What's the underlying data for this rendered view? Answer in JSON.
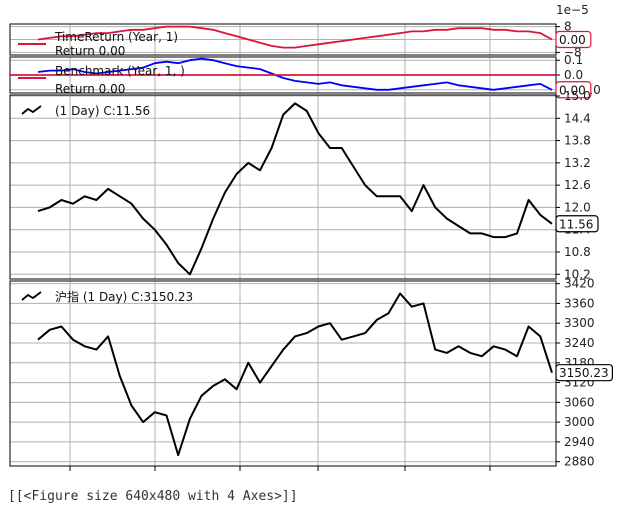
{
  "figure_caption": "[[<Figure size 640x480 with 4 Axes>]]",
  "colors": {
    "red": "#dc143c",
    "blue": "#0000ff",
    "black": "#000000",
    "grid": "#b0b0b0"
  },
  "chart_data": [
    {
      "type": "line",
      "legend": [
        "TimeReturn (Year, 1)",
        "Return 0.00"
      ],
      "exponent_label": "1e−5",
      "ylim": [
        -9,
        9
      ],
      "y_ticks": [
        8,
        0,
        -8
      ],
      "tick_labels": [
        "8",
        "0",
        "−8"
      ],
      "value_label": "0.00",
      "grid": true,
      "series": [
        {
          "values": [
            0,
            1,
            2,
            2,
            3,
            4,
            4,
            5,
            6,
            6,
            7,
            8,
            8,
            8,
            7,
            6,
            4,
            2,
            0,
            -2,
            -4,
            -5,
            -5,
            -4,
            -3,
            -2,
            -1,
            0,
            1,
            2,
            3,
            4,
            5,
            5,
            6,
            6,
            7,
            7,
            7,
            6,
            6,
            5,
            5,
            4,
            0
          ]
        }
      ]
    },
    {
      "type": "line",
      "legend": [
        "Benchmark (Year, 1, )",
        "Return 0.00"
      ],
      "ylim": [
        -0.115,
        0.115
      ],
      "y_ticks": [
        0.1,
        0.0,
        -0.1
      ],
      "tick_labels": [
        "0.1",
        "0.0",
        "−0.10"
      ],
      "value_label": "0.00",
      "grid": true,
      "series": [
        {
          "values": [
            0.02,
            0.03,
            0.03,
            0.04,
            0.02,
            0.01,
            0.02,
            0.03,
            0.04,
            0.05,
            0.08,
            0.09,
            0.08,
            0.1,
            0.11,
            0.1,
            0.08,
            0.06,
            0.05,
            0.04,
            0.01,
            -0.02,
            -0.04,
            -0.05,
            -0.06,
            -0.05,
            -0.07,
            -0.08,
            -0.09,
            -0.1,
            -0.1,
            -0.09,
            -0.08,
            -0.07,
            -0.06,
            -0.05,
            -0.07,
            -0.08,
            -0.09,
            -0.1,
            -0.09,
            -0.08,
            -0.07,
            -0.06,
            -0.1
          ]
        },
        {
          "values": [
            0.0,
            0.0
          ]
        }
      ]
    },
    {
      "type": "line",
      "legend": [
        "(1 Day) C:11.56"
      ],
      "ylim": [
        10.1,
        15.0
      ],
      "y_ticks": [
        15.0,
        14.4,
        13.8,
        13.2,
        12.6,
        12.0,
        11.4,
        10.8,
        10.2
      ],
      "tick_labels": [
        "15.0",
        "14.4",
        "13.8",
        "13.2",
        "12.6",
        "12.0",
        "11.4",
        "10.8",
        "10.2"
      ],
      "value_label": "11.56",
      "grid": true,
      "series": [
        {
          "values": [
            11.9,
            12.0,
            12.2,
            12.1,
            12.3,
            12.2,
            12.5,
            12.3,
            12.1,
            11.7,
            11.4,
            11.0,
            10.5,
            10.2,
            10.9,
            11.7,
            12.4,
            12.9,
            13.2,
            13.0,
            13.6,
            14.5,
            14.8,
            14.6,
            14.0,
            13.6,
            13.6,
            13.1,
            12.6,
            12.3,
            12.3,
            12.3,
            11.9,
            12.6,
            12.0,
            11.7,
            11.5,
            11.3,
            11.3,
            11.2,
            11.2,
            11.3,
            12.2,
            11.8,
            11.56
          ]
        }
      ]
    },
    {
      "type": "line",
      "legend": [
        "沪指 (1 Day) C:3150.23"
      ],
      "ylim": [
        2870,
        3425
      ],
      "y_ticks": [
        3420,
        3360,
        3300,
        3240,
        3180,
        3120,
        3060,
        3000,
        2940,
        2880
      ],
      "tick_labels": [
        "3420",
        "3360",
        "3300",
        "3240",
        "3180",
        "3120",
        "3060",
        "3000",
        "2940",
        "2880"
      ],
      "value_label": "3150.23",
      "grid": true,
      "series": [
        {
          "values": [
            3250,
            3280,
            3290,
            3250,
            3230,
            3220,
            3260,
            3140,
            3050,
            3000,
            3030,
            3020,
            2900,
            3010,
            3080,
            3110,
            3130,
            3100,
            3180,
            3120,
            3170,
            3220,
            3260,
            3270,
            3290,
            3300,
            3250,
            3260,
            3270,
            3310,
            3330,
            3390,
            3350,
            3360,
            3220,
            3210,
            3230,
            3210,
            3200,
            3230,
            3220,
            3200,
            3290,
            3260,
            3150
          ]
        }
      ]
    }
  ]
}
